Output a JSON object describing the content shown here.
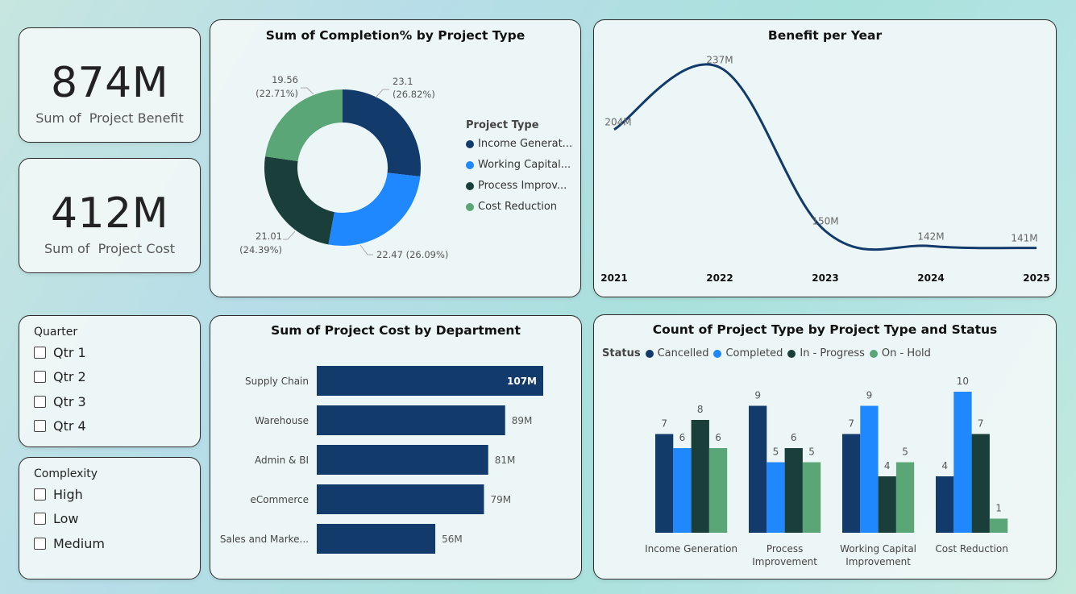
{
  "kpis": {
    "benefit": {
      "value": "874M",
      "label": "Sum of  Project Benefit"
    },
    "cost": {
      "value": "412M",
      "label": "Sum of  Project Cost"
    }
  },
  "slicers": {
    "quarter": {
      "title": "Quarter",
      "items": [
        "Qtr 1",
        "Qtr 2",
        "Qtr 3",
        "Qtr 4"
      ]
    },
    "complexity": {
      "title": "Complexity",
      "items": [
        "High",
        "Low",
        "Medium"
      ]
    }
  },
  "colors": {
    "cancelled": "#123b6b",
    "completed": "#1f88ff",
    "in_progress": "#1a3f3a",
    "on_hold": "#5aa676"
  },
  "chart_data": [
    {
      "id": "donut",
      "type": "pie",
      "title": "Sum of Completion% by Project Type",
      "legend_title": "Project Type",
      "legend_position": "right",
      "slices": [
        {
          "name": "Income Generat...",
          "value": 23.1,
          "pct": "26.82%",
          "label": "23.1",
          "color": "#123b6b"
        },
        {
          "name": "Working Capital...",
          "value": 22.47,
          "pct": "26.09%",
          "label": "22.47 (26.09%)",
          "color": "#1f88ff"
        },
        {
          "name": "Process Improv...",
          "value": 21.01,
          "pct": "24.39%",
          "label": "21.01",
          "color": "#1a3f3a"
        },
        {
          "name": "Cost Reduction",
          "value": 19.56,
          "pct": "22.71%",
          "label": "19.56",
          "color": "#5aa676"
        }
      ]
    },
    {
      "id": "line",
      "type": "line",
      "title": "Benefit per Year",
      "x": [
        "2021",
        "2022",
        "2023",
        "2024",
        "2025"
      ],
      "values": [
        204,
        237,
        150,
        142,
        141
      ],
      "labels": [
        "204M",
        "237M",
        "150M",
        "142M",
        "141M"
      ],
      "color": "#123b6b"
    },
    {
      "id": "hbar",
      "type": "bar",
      "orientation": "horizontal",
      "title": "Sum of Project Cost by Department",
      "categories": [
        "Supply Chain",
        "Warehouse",
        "Admin & BI",
        "eCommerce",
        "Sales and Marke..."
      ],
      "values": [
        107,
        89,
        81,
        79,
        56
      ],
      "labels": [
        "107M",
        "89M",
        "81M",
        "79M",
        "56M"
      ],
      "color": "#123b6b"
    },
    {
      "id": "cbar",
      "type": "bar",
      "title": "Count of Project Type by Project Type and Status",
      "legend_title": "Status",
      "legend_position": "top-left",
      "categories": [
        [
          "Income Generation"
        ],
        [
          "Process",
          "Improvement"
        ],
        [
          "Working Capital",
          "Improvement"
        ],
        [
          "Cost Reduction"
        ]
      ],
      "series": [
        {
          "name": "Cancelled",
          "values": [
            7,
            9,
            7,
            4
          ],
          "color": "#123b6b"
        },
        {
          "name": "Completed",
          "values": [
            6,
            5,
            9,
            10
          ],
          "color": "#1f88ff"
        },
        {
          "name": "In - Progress",
          "values": [
            8,
            6,
            4,
            7
          ],
          "color": "#1a3f3a"
        },
        {
          "name": "On - Hold",
          "values": [
            6,
            5,
            5,
            1
          ],
          "color": "#5aa676"
        }
      ]
    }
  ]
}
